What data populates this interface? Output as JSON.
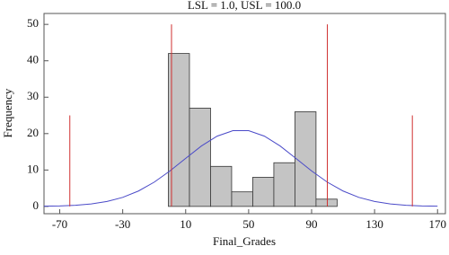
{
  "chart_data": {
    "type": "histogram",
    "title": "LSL = 1.0, USL = 100.0",
    "x_label": "Final_Grades",
    "y_label": "Frequency",
    "bins": [
      -1,
      12.4,
      25.8,
      39.2,
      52.6,
      66,
      79.4,
      92.8,
      106.2
    ],
    "values": [
      42,
      27,
      11,
      4,
      8,
      12,
      26,
      2
    ],
    "color": "#c4c4c4",
    "curve": {
      "color": "#4a4ac8",
      "x": [
        -80,
        -70,
        -60,
        -50,
        -40,
        -30,
        -20,
        -10,
        0,
        10,
        20,
        30,
        40,
        50,
        60,
        70,
        80,
        90,
        100,
        110,
        120,
        130,
        140,
        150,
        160,
        170
      ],
      "values": [
        0.06,
        0.14,
        0.32,
        0.68,
        1.35,
        2.48,
        4.23,
        6.66,
        9.74,
        13.2,
        16.6,
        19.3,
        20.8,
        20.8,
        19.3,
        16.6,
        13.2,
        9.74,
        6.66,
        4.23,
        2.48,
        1.35,
        0.68,
        0.32,
        0.14,
        0.06
      ]
    },
    "ref_lines": {
      "color": "#d03030",
      "x": [
        1,
        100,
        -63.6,
        154
      ],
      "top": [
        50,
        50,
        25,
        25
      ]
    },
    "xlim": [
      -80,
      175
    ],
    "ylim": [
      -2,
      53
    ],
    "xticks": [
      -70,
      -30,
      10,
      50,
      90,
      130,
      170
    ],
    "yticks": [
      0,
      10,
      20,
      30,
      40,
      50
    ]
  }
}
